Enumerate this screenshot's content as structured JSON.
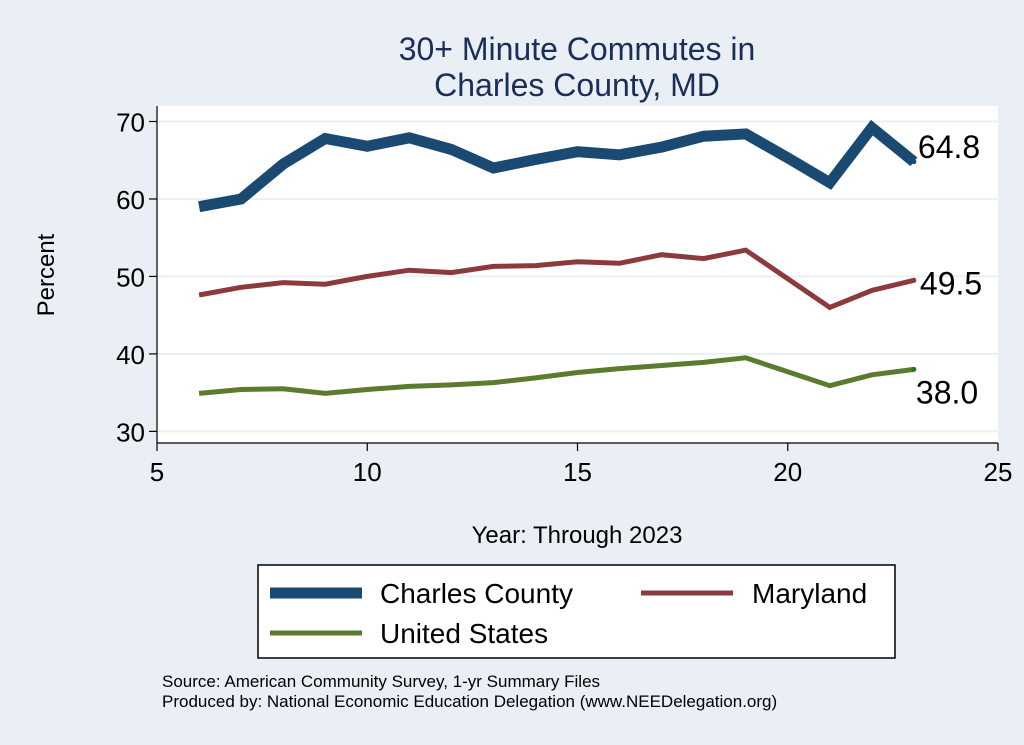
{
  "chart_data": {
    "type": "line",
    "title": [
      "30+ Minute Commutes in",
      "Charles County, MD"
    ],
    "xlabel": "Year: Through 2023",
    "ylabel": "Percent",
    "xlim": [
      5,
      25
    ],
    "ylim": [
      28.5,
      72
    ],
    "xticks": [
      5,
      10,
      15,
      20,
      25
    ],
    "yticks": [
      30,
      40,
      50,
      60,
      70
    ],
    "grid": true,
    "legend_position": "bottom",
    "series": [
      {
        "name": "Charles County",
        "color": "#1a4a72",
        "width": 11,
        "end_label": "64.8",
        "points": [
          [
            6,
            59.0
          ],
          [
            7,
            60.0
          ],
          [
            8,
            64.5
          ],
          [
            9,
            67.8
          ],
          [
            10,
            66.8
          ],
          [
            11,
            67.9
          ],
          [
            12,
            66.4
          ],
          [
            13,
            64.0
          ],
          [
            14,
            65.1
          ],
          [
            15,
            66.1
          ],
          [
            16,
            65.7
          ],
          [
            17,
            66.7
          ],
          [
            18,
            68.1
          ],
          [
            19,
            68.4
          ],
          [
            20,
            65.3
          ],
          [
            21,
            62.1
          ],
          [
            22,
            69.2
          ],
          [
            23,
            64.8
          ]
        ]
      },
      {
        "name": "Maryland",
        "color": "#8b3a3e",
        "width": 5,
        "end_label": "49.5",
        "points": [
          [
            6,
            47.6
          ],
          [
            7,
            48.6
          ],
          [
            8,
            49.2
          ],
          [
            9,
            49.0
          ],
          [
            10,
            50.0
          ],
          [
            11,
            50.8
          ],
          [
            12,
            50.5
          ],
          [
            13,
            51.3
          ],
          [
            14,
            51.4
          ],
          [
            15,
            51.9
          ],
          [
            16,
            51.7
          ],
          [
            17,
            52.8
          ],
          [
            18,
            52.3
          ],
          [
            19,
            53.4
          ],
          [
            21,
            46.0
          ],
          [
            22,
            48.2
          ],
          [
            23,
            49.5
          ]
        ]
      },
      {
        "name": "United States",
        "color": "#5b7b2e",
        "width": 5,
        "end_label": "38.0",
        "points": [
          [
            6,
            34.9
          ],
          [
            7,
            35.4
          ],
          [
            8,
            35.5
          ],
          [
            9,
            34.9
          ],
          [
            10,
            35.4
          ],
          [
            11,
            35.8
          ],
          [
            12,
            36.0
          ],
          [
            13,
            36.3
          ],
          [
            14,
            36.9
          ],
          [
            15,
            37.6
          ],
          [
            16,
            38.1
          ],
          [
            17,
            38.5
          ],
          [
            18,
            38.9
          ],
          [
            19,
            39.5
          ],
          [
            21,
            35.9
          ],
          [
            22,
            37.3
          ],
          [
            23,
            38.0
          ]
        ]
      }
    ]
  },
  "footer": {
    "source": "Source: American Community Survey, 1-yr Summary Files",
    "produced": "Produced by: National Economic Education Delegation (www.NEEDelegation.org)"
  }
}
